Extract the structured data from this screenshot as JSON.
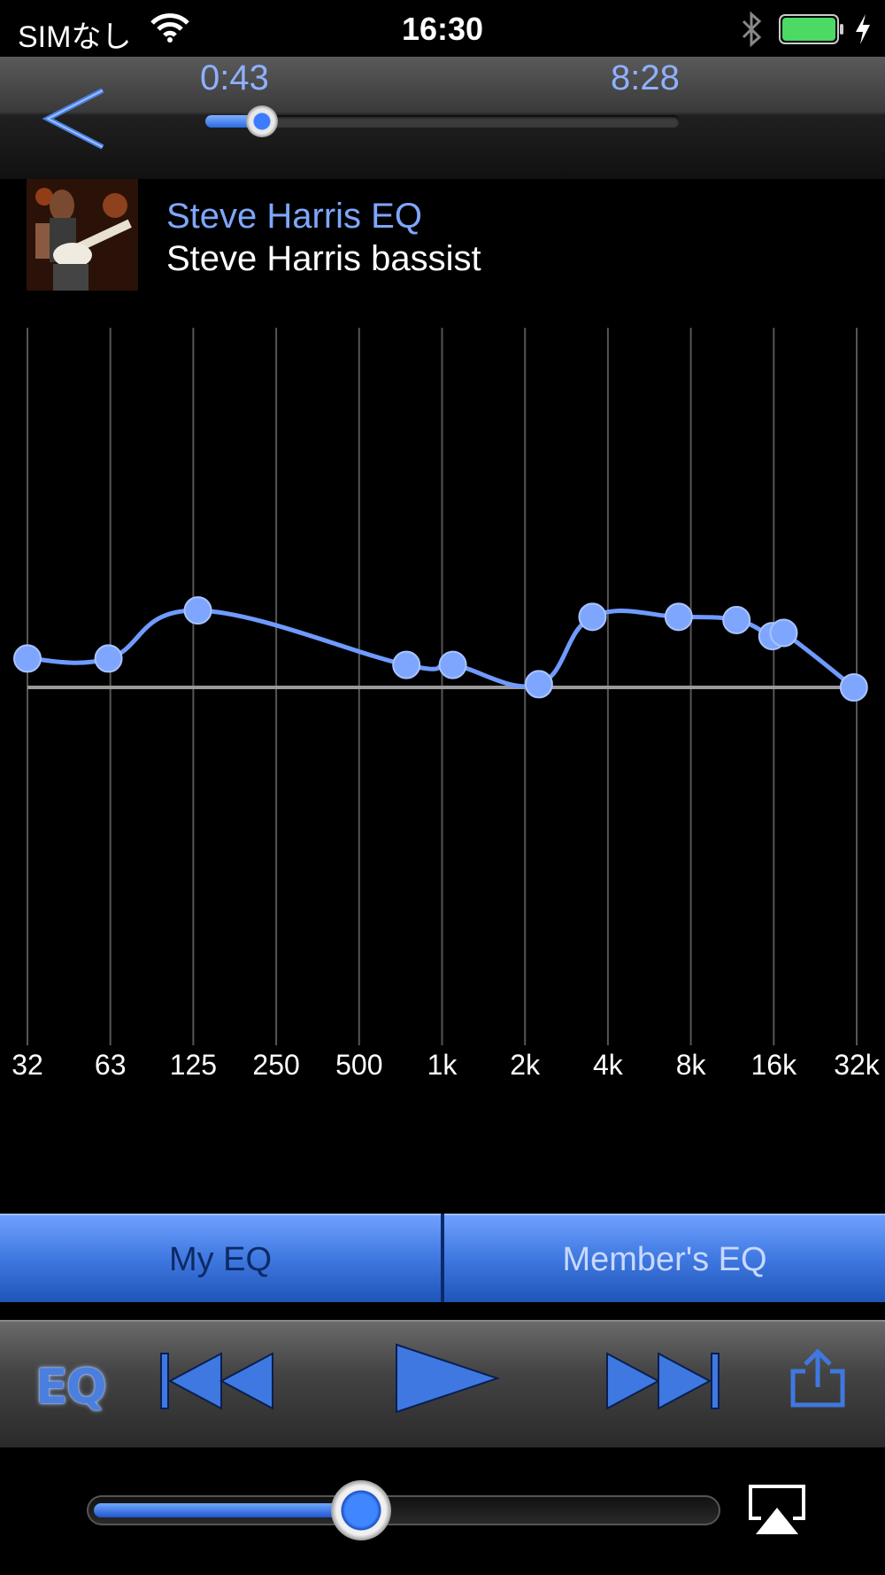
{
  "status_bar": {
    "carrier": "SIMなし",
    "time": "16:30",
    "battery_color": "#4cd964"
  },
  "seek": {
    "elapsed": "0:43",
    "total": "8:28",
    "progress": 0.085
  },
  "track": {
    "title": "Steve Harris EQ",
    "artist": "Steve Harris bassist"
  },
  "chart_data": {
    "type": "line",
    "x_ticks": [
      "32",
      "63",
      "125",
      "250",
      "500",
      "1k",
      "2k",
      "4k",
      "8k",
      "16k",
      "32k"
    ],
    "x_scale": "log2",
    "y_range": [
      -10,
      10
    ],
    "baseline": 0,
    "points": [
      {
        "x": 32,
        "y": 0.9
      },
      {
        "x": 63,
        "y": 0.9
      },
      {
        "x": 133,
        "y": 2.4
      },
      {
        "x": 760,
        "y": 0.7
      },
      {
        "x": 1120,
        "y": 0.7
      },
      {
        "x": 2300,
        "y": 0.1
      },
      {
        "x": 3600,
        "y": 2.2
      },
      {
        "x": 7400,
        "y": 2.2
      },
      {
        "x": 12000,
        "y": 2.1
      },
      {
        "x": 16200,
        "y": 1.6
      },
      {
        "x": 17800,
        "y": 1.7
      },
      {
        "x": 32000,
        "y": 0.0
      }
    ],
    "line_color": "#6f9bff",
    "grid": true
  },
  "segment": {
    "my_eq": "My EQ",
    "member_eq": "Member's EQ"
  },
  "controls": {
    "eq_label": "EQ",
    "accent": "#4a7fe0",
    "icons": [
      "previous-icon",
      "play-icon",
      "next-icon",
      "share-icon"
    ]
  },
  "volume": {
    "level": 0.42
  }
}
